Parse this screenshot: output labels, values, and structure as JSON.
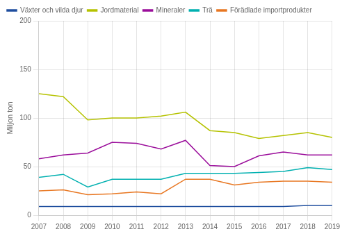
{
  "chart_data": {
    "type": "line",
    "x": [
      2007,
      2008,
      2009,
      2010,
      2011,
      2012,
      2013,
      2014,
      2015,
      2016,
      2017,
      2018,
      2019
    ],
    "series": [
      {
        "name": "Växter och vilda djur",
        "color": "#1f4e9e",
        "values": [
          9,
          9,
          9,
          9,
          9,
          9,
          9,
          9,
          9,
          9,
          9,
          10,
          10
        ]
      },
      {
        "name": "Jordmaterial",
        "color": "#b5c200",
        "values": [
          125,
          122,
          98,
          100,
          100,
          102,
          106,
          87,
          85,
          79,
          82,
          85,
          80
        ]
      },
      {
        "name": "Mineraler",
        "color": "#9b0e9b",
        "values": [
          58,
          62,
          64,
          75,
          74,
          68,
          77,
          51,
          50,
          61,
          65,
          62,
          62
        ]
      },
      {
        "name": "Trä",
        "color": "#00b0b0",
        "values": [
          39,
          42,
          29,
          37,
          37,
          37,
          43,
          43,
          43,
          44,
          45,
          49,
          47
        ]
      },
      {
        "name": "Förädlade importprodukter",
        "color": "#e87722",
        "values": [
          25,
          26,
          21,
          22,
          24,
          22,
          37,
          37,
          31,
          34,
          35,
          35,
          34
        ]
      }
    ],
    "ylabel": "Miljon ton",
    "xlim": [
      2007,
      2019
    ],
    "xticks": [
      2007,
      2008,
      2009,
      2010,
      2011,
      2012,
      2013,
      2014,
      2015,
      2016,
      2017,
      2018,
      2019
    ],
    "ylim": [
      0,
      200
    ],
    "yticks": [
      0,
      50,
      100,
      150,
      200
    ],
    "grid": true,
    "legend": "top"
  }
}
